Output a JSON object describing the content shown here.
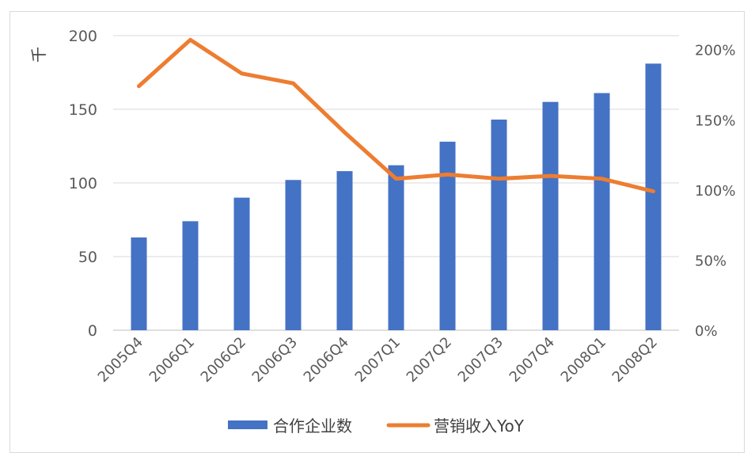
{
  "chart_data": {
    "type": "bar",
    "unit_label": "千",
    "categories": [
      "2005Q4",
      "2006Q1",
      "2006Q2",
      "2006Q3",
      "2006Q4",
      "2007Q1",
      "2007Q2",
      "2007Q3",
      "2007Q4",
      "2008Q1",
      "2008Q2"
    ],
    "series": [
      {
        "name": "合作企业数",
        "type": "bar",
        "axis": "left",
        "color": "#4472C4",
        "values": [
          63,
          74,
          90,
          102,
          108,
          112,
          128,
          143,
          155,
          161,
          181
        ]
      },
      {
        "name": "营销收入YoY",
        "type": "line",
        "axis": "right",
        "color": "#ED7D31",
        "values": [
          1.74,
          2.07,
          1.83,
          1.76,
          1.41,
          1.08,
          1.11,
          1.08,
          1.1,
          1.08,
          0.99
        ]
      }
    ],
    "left_axis": {
      "ylim": [
        0,
        200
      ],
      "ticks": [
        "0",
        "50",
        "100",
        "150",
        "200"
      ]
    },
    "right_axis": {
      "ylim": [
        0,
        2.1
      ],
      "ticks": [
        "0%",
        "50%",
        "100%",
        "150%",
        "200%"
      ],
      "tick_values": [
        0,
        0.5,
        1.0,
        1.5,
        2.0
      ]
    },
    "grid": true,
    "legend_position": "bottom"
  }
}
